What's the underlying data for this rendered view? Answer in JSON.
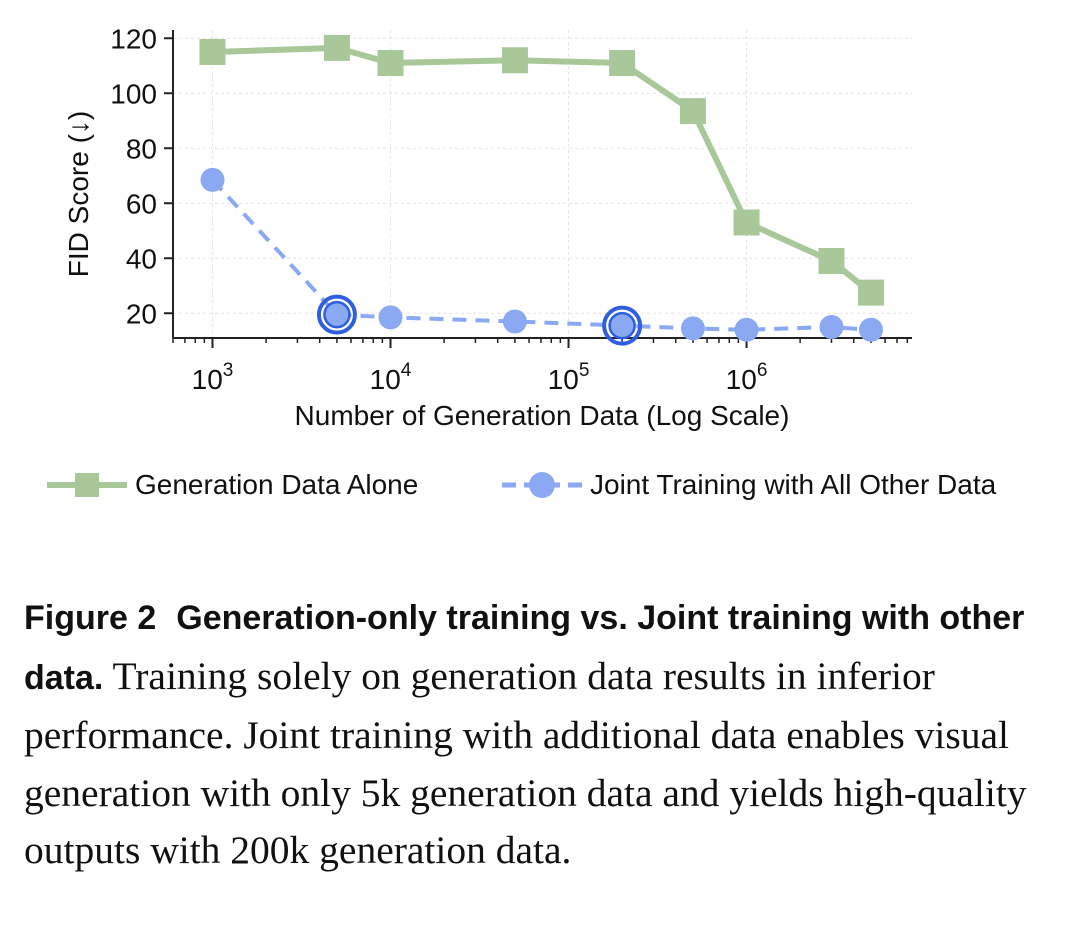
{
  "chart_data": {
    "type": "line",
    "xlabel": "Number of Generation Data (Log Scale)",
    "ylabel": "FID Score (↓)",
    "xscale": "log",
    "xlim": [
      600,
      8500000
    ],
    "ylim": [
      11,
      123
    ],
    "x_ticks": [
      {
        "value": 1000,
        "base": "10",
        "exp": "3"
      },
      {
        "value": 10000,
        "base": "10",
        "exp": "4"
      },
      {
        "value": 100000,
        "base": "10",
        "exp": "5"
      },
      {
        "value": 1000000,
        "base": "10",
        "exp": "6"
      }
    ],
    "y_ticks": [
      20,
      40,
      60,
      80,
      100,
      120
    ],
    "grid": true,
    "legend_position": "bottom",
    "series": [
      {
        "name": "Generation Data Alone",
        "color": "#a8c89a",
        "marker": "square",
        "line_style": "solid",
        "x": [
          1000,
          5000,
          10000,
          50000,
          200000,
          500000,
          1000000,
          3000000,
          5000000
        ],
        "y": [
          115,
          116.5,
          111,
          112,
          111,
          93.5,
          53,
          39,
          27.5
        ]
      },
      {
        "name": "Joint Training with All Other Data",
        "color": "#8aa9f2",
        "marker": "circle",
        "line_style": "dashed",
        "x": [
          1000,
          5000,
          10000,
          50000,
          200000,
          500000,
          1000000,
          3000000,
          5000000
        ],
        "y": [
          68.5,
          19.5,
          18.5,
          17,
          15.5,
          14.5,
          14,
          15,
          14
        ],
        "highlighted_x": [
          5000,
          200000
        ],
        "highlight_color": "#2f5fde"
      }
    ]
  },
  "caption": {
    "label": "Figure 2",
    "title": "Generation-only training vs. Joint training with other data.",
    "body": "Training solely on generation data results in inferior performance. Joint training with additional data enables visual generation with only 5k generation data and yields high-quality outputs with 200k generation data."
  }
}
